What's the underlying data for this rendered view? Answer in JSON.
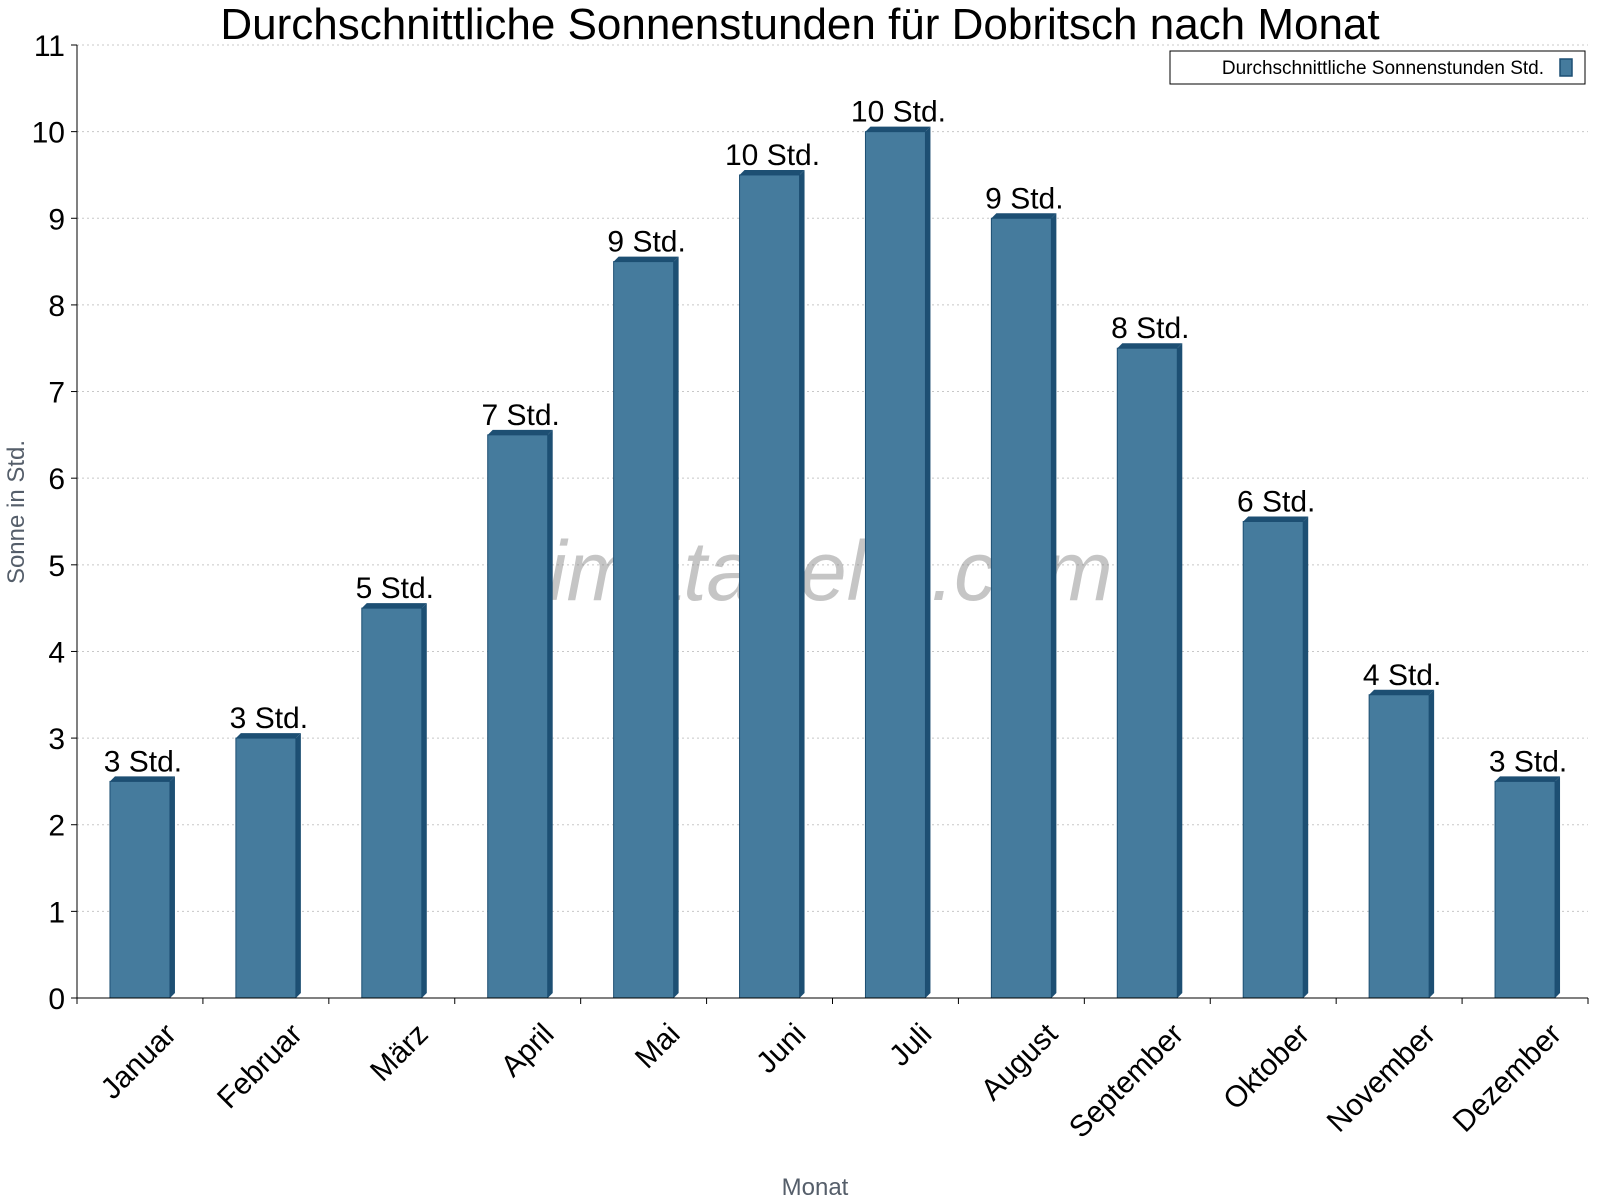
{
  "chart_data": {
    "type": "bar",
    "title": "Durchschnittliche Sonnenstunden für Dobritsch nach Monat",
    "xlabel": "Monat",
    "ylabel": "Sonne in Std.",
    "categories": [
      "Januar",
      "Februar",
      "März",
      "April",
      "Mai",
      "Juni",
      "Juli",
      "August",
      "September",
      "Oktober",
      "November",
      "Dezember"
    ],
    "series": [
      {
        "name": "Durchschnittliche Sonnenstunden Std.",
        "values": [
          2.5,
          3,
          4.5,
          6.5,
          8.5,
          9.5,
          10,
          9,
          7.5,
          5.5,
          3.5,
          2.5
        ],
        "data_labels": [
          "3 Std.",
          "3 Std.",
          "5 Std.",
          "7 Std.",
          "9 Std.",
          "10 Std.",
          "10 Std.",
          "9 Std.",
          "8 Std.",
          "6 Std.",
          "4 Std.",
          "3 Std."
        ]
      }
    ],
    "ylim": [
      0,
      11
    ],
    "yticks": [
      "0",
      "1",
      "2",
      "3",
      "4",
      "5",
      "6",
      "7",
      "8",
      "9",
      "10",
      "11"
    ],
    "grid": true,
    "legend_position": "top-right",
    "watermark": "klimatabelle.com",
    "colors": {
      "bar": "#457b9d",
      "bar_side": "#1d4f73",
      "grid": "#c8c8c8"
    }
  }
}
